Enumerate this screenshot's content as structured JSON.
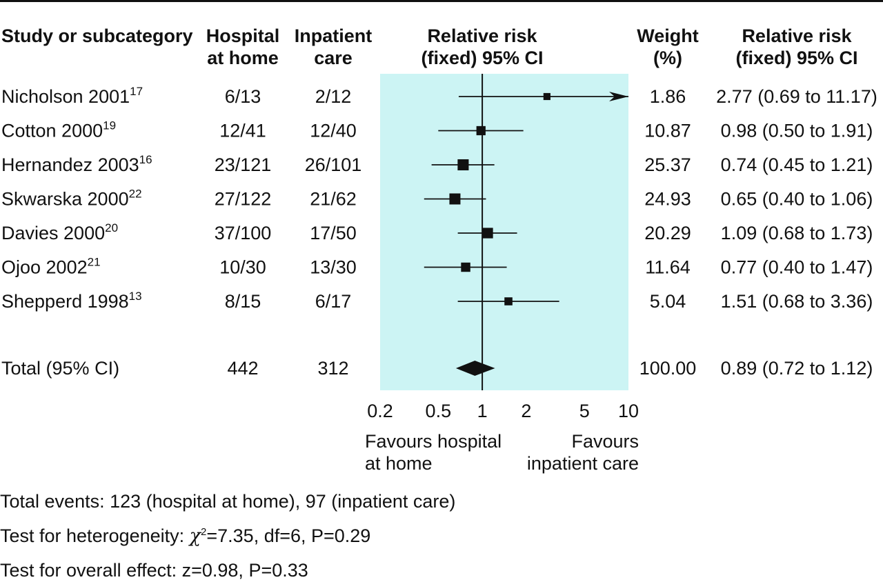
{
  "headers": {
    "study": "Study or subcategory",
    "hosp": [
      "Hospital",
      "at home"
    ],
    "inpat": [
      "Inpatient",
      "care"
    ],
    "rr_plot": [
      "Relative risk",
      "(fixed) 95% CI"
    ],
    "weight": [
      "Weight",
      "(%)"
    ],
    "rr_text": [
      "Relative risk",
      "(fixed) 95% CI"
    ]
  },
  "favours": {
    "left": [
      "Favours hospital",
      "at home"
    ],
    "right": [
      "Favours",
      "inpatient care"
    ]
  },
  "footer": {
    "events": "Total events: 123 (hospital at home), 97 (inpatient care)",
    "heterogeneity_prefix": "Test for heterogeneity: ",
    "chi_symbol": "χ",
    "chi_sup": "2",
    "heterogeneity_rest": "=7.35, df=6, P=0.29",
    "overall": "Test for overall effect: z=0.98, P=0.33"
  },
  "colors": {
    "plot_background": "#ccf4f4",
    "ink": "#111111"
  },
  "chart_data": {
    "type": "forest",
    "x_scale": "log",
    "xlim": [
      0.2,
      10
    ],
    "x_ticks": [
      0.2,
      0.5,
      1,
      2,
      5,
      10
    ],
    "x_tick_labels": [
      "0.2",
      "0.5",
      "1",
      "2",
      "5",
      "10"
    ],
    "reference_line": 1,
    "studies": [
      {
        "name": "Nicholson 2001",
        "ref": "17",
        "hosp": "6/13",
        "inpat": "2/12",
        "weight": "1.86",
        "rr": 2.77,
        "lo": 0.69,
        "hi": 11.17,
        "ci_text": "2.77 (0.69 to 11.17)",
        "clipped_right": true
      },
      {
        "name": "Cotton 2000",
        "ref": "19",
        "hosp": "12/41",
        "inpat": "12/40",
        "weight": "10.87",
        "rr": 0.98,
        "lo": 0.5,
        "hi": 1.91,
        "ci_text": "0.98 (0.50 to 1.91)"
      },
      {
        "name": "Hernandez 2003",
        "ref": "16",
        "hosp": "23/121",
        "inpat": "26/101",
        "weight": "25.37",
        "rr": 0.74,
        "lo": 0.45,
        "hi": 1.21,
        "ci_text": "0.74 (0.45 to 1.21)"
      },
      {
        "name": "Skwarska 2000",
        "ref": "22",
        "hosp": "27/122",
        "inpat": "21/62",
        "weight": "24.93",
        "rr": 0.65,
        "lo": 0.4,
        "hi": 1.06,
        "ci_text": "0.65 (0.40 to 1.06)"
      },
      {
        "name": "Davies 2000",
        "ref": "20",
        "hosp": "37/100",
        "inpat": "17/50",
        "weight": "20.29",
        "rr": 1.09,
        "lo": 0.68,
        "hi": 1.73,
        "ci_text": "1.09 (0.68 to 1.73)"
      },
      {
        "name": "Ojoo 2002",
        "ref": "21",
        "hosp": "10/30",
        "inpat": "13/30",
        "weight": "11.64",
        "rr": 0.77,
        "lo": 0.4,
        "hi": 1.47,
        "ci_text": "0.77 (0.40 to 1.47)"
      },
      {
        "name": "Shepperd 1998",
        "ref": "13",
        "hosp": "8/15",
        "inpat": "6/17",
        "weight": "5.04",
        "rr": 1.51,
        "lo": 0.68,
        "hi": 3.36,
        "ci_text": "1.51 (0.68 to 3.36)"
      }
    ],
    "total": {
      "name": "Total (95% CI)",
      "hosp": "442",
      "inpat": "312",
      "weight": "100.00",
      "rr": 0.89,
      "lo": 0.72,
      "hi": 1.12,
      "ci_text": "0.89 (0.72 to 1.12)"
    }
  }
}
